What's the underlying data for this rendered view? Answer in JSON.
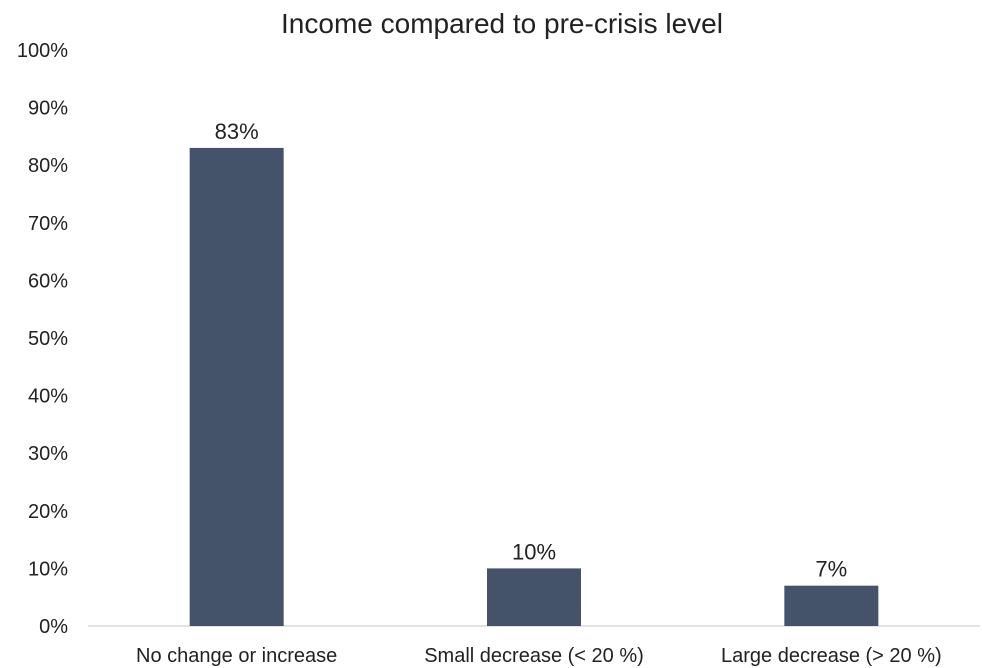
{
  "chart_data": {
    "type": "bar",
    "title": "Income compared to pre-crisis level",
    "xlabel": "",
    "ylabel": "",
    "categories": [
      "No change or increase",
      "Small decrease (< 20 %)",
      "Large decrease (> 20 %)"
    ],
    "values": [
      83,
      10,
      7
    ],
    "value_labels": [
      "83%",
      "10%",
      "7%"
    ],
    "ylim": [
      0,
      100
    ],
    "yticks": [
      0,
      10,
      20,
      30,
      40,
      50,
      60,
      70,
      80,
      90,
      100
    ],
    "ytick_labels": [
      "0%",
      "10%",
      "20%",
      "30%",
      "40%",
      "50%",
      "60%",
      "70%",
      "80%",
      "90%",
      "100%"
    ],
    "grid": false,
    "legend": "none",
    "bar_color": "#44536a"
  }
}
